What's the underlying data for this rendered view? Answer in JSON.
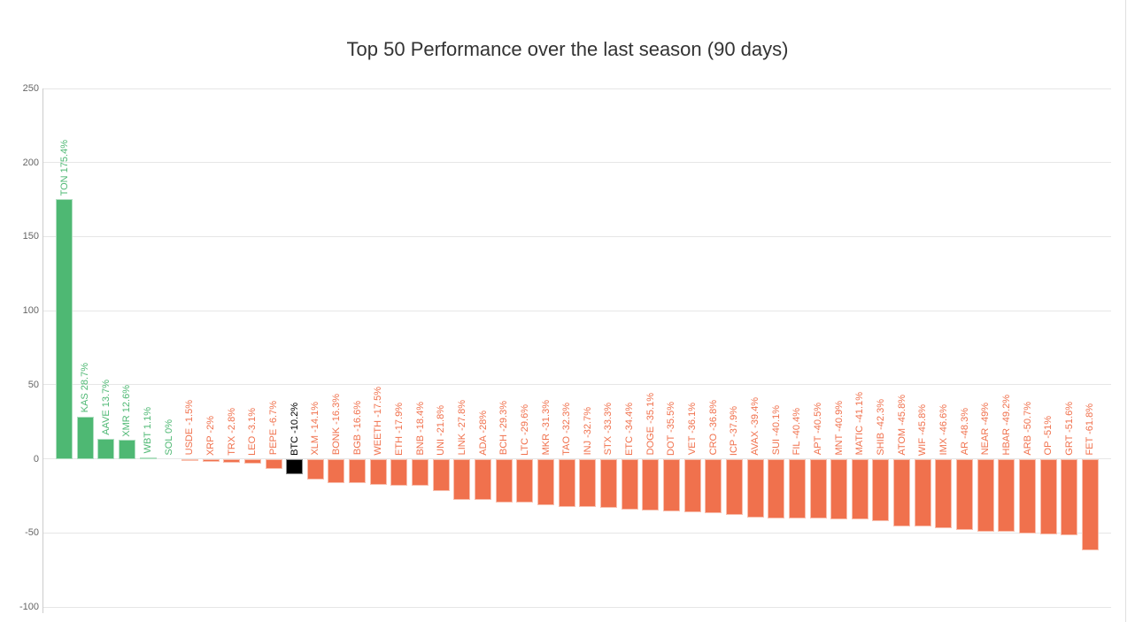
{
  "colors": {
    "positive": "#4eb873",
    "negative": "#f0714d",
    "highlight": "#000000",
    "grid": "#e6e6e6",
    "axis": "#cccccc",
    "tick_label": "#666666",
    "title": "#333333",
    "right_border": "#e0e0e0",
    "background": "#ffffff"
  },
  "chart_data": {
    "type": "bar",
    "title": "Top 50 Performance over the last season (90 days)",
    "xlabel": "",
    "ylabel": "",
    "ylim": [
      -100,
      250
    ],
    "yticks": [
      250,
      200,
      150,
      100,
      50,
      0,
      -50,
      -100
    ],
    "grid": true,
    "legend": false,
    "bar_label_format": "SYMBOL VALUE%",
    "points": [
      {
        "symbol": "TON",
        "value": 175.4,
        "label": "TON 175.4%",
        "role": "positive"
      },
      {
        "symbol": "KAS",
        "value": 28.7,
        "label": "KAS 28.7%",
        "role": "positive"
      },
      {
        "symbol": "AAVE",
        "value": 13.7,
        "label": "AAVE 13.7%",
        "role": "positive"
      },
      {
        "symbol": "XMR",
        "value": 12.6,
        "label": "XMR 12.6%",
        "role": "positive"
      },
      {
        "symbol": "WBT",
        "value": 1.1,
        "label": "WBT 1.1%",
        "role": "positive"
      },
      {
        "symbol": "SOL",
        "value": 0,
        "label": "SOL 0%",
        "role": "positive"
      },
      {
        "symbol": "USDE",
        "value": -1.5,
        "label": "USDE -1.5%",
        "role": "negative"
      },
      {
        "symbol": "XRP",
        "value": -2,
        "label": "XRP -2%",
        "role": "negative"
      },
      {
        "symbol": "TRX",
        "value": -2.8,
        "label": "TRX -2.8%",
        "role": "negative"
      },
      {
        "symbol": "LEO",
        "value": -3.1,
        "label": "LEO -3.1%",
        "role": "negative"
      },
      {
        "symbol": "PEPE",
        "value": -6.7,
        "label": "PEPE -6.7%",
        "role": "negative"
      },
      {
        "symbol": "BTC",
        "value": -10.2,
        "label": "BTC -10.2%",
        "role": "highlight"
      },
      {
        "symbol": "XLM",
        "value": -14.1,
        "label": "XLM -14.1%",
        "role": "negative"
      },
      {
        "symbol": "BONK",
        "value": -16.3,
        "label": "BONK -16.3%",
        "role": "negative"
      },
      {
        "symbol": "BGB",
        "value": -16.6,
        "label": "BGB -16.6%",
        "role": "negative"
      },
      {
        "symbol": "WEETH",
        "value": -17.5,
        "label": "WEETH -17.5%",
        "role": "negative"
      },
      {
        "symbol": "ETH",
        "value": -17.9,
        "label": "ETH -17.9%",
        "role": "negative"
      },
      {
        "symbol": "BNB",
        "value": -18.4,
        "label": "BNB -18.4%",
        "role": "negative"
      },
      {
        "symbol": "UNI",
        "value": -21.8,
        "label": "UNI -21.8%",
        "role": "negative"
      },
      {
        "symbol": "LINK",
        "value": -27.8,
        "label": "LINK -27.8%",
        "role": "negative"
      },
      {
        "symbol": "ADA",
        "value": -28,
        "label": "ADA -28%",
        "role": "negative"
      },
      {
        "symbol": "BCH",
        "value": -29.3,
        "label": "BCH -29.3%",
        "role": "negative"
      },
      {
        "symbol": "LTC",
        "value": -29.6,
        "label": "LTC -29.6%",
        "role": "negative"
      },
      {
        "symbol": "MKR",
        "value": -31.3,
        "label": "MKR -31.3%",
        "role": "negative"
      },
      {
        "symbol": "TAO",
        "value": -32.3,
        "label": "TAO -32.3%",
        "role": "negative"
      },
      {
        "symbol": "INJ",
        "value": -32.7,
        "label": "INJ -32.7%",
        "role": "negative"
      },
      {
        "symbol": "STX",
        "value": -33.3,
        "label": "STX -33.3%",
        "role": "negative"
      },
      {
        "symbol": "ETC",
        "value": -34.4,
        "label": "ETC -34.4%",
        "role": "negative"
      },
      {
        "symbol": "DOGE",
        "value": -35.1,
        "label": "DOGE -35.1%",
        "role": "negative"
      },
      {
        "symbol": "DOT",
        "value": -35.5,
        "label": "DOT -35.5%",
        "role": "negative"
      },
      {
        "symbol": "VET",
        "value": -36.1,
        "label": "VET -36.1%",
        "role": "negative"
      },
      {
        "symbol": "CRO",
        "value": -36.8,
        "label": "CRO -36.8%",
        "role": "negative"
      },
      {
        "symbol": "ICP",
        "value": -37.9,
        "label": "ICP -37.9%",
        "role": "negative"
      },
      {
        "symbol": "AVAX",
        "value": -39.4,
        "label": "AVAX -39.4%",
        "role": "negative"
      },
      {
        "symbol": "SUI",
        "value": -40.1,
        "label": "SUI -40.1%",
        "role": "negative"
      },
      {
        "symbol": "FIL",
        "value": -40.4,
        "label": "FIL -40.4%",
        "role": "negative"
      },
      {
        "symbol": "APT",
        "value": -40.5,
        "label": "APT -40.5%",
        "role": "negative"
      },
      {
        "symbol": "MNT",
        "value": -40.9,
        "label": "MNT -40.9%",
        "role": "negative"
      },
      {
        "symbol": "MATIC",
        "value": -41.1,
        "label": "MATIC -41.1%",
        "role": "negative"
      },
      {
        "symbol": "SHIB",
        "value": -42.3,
        "label": "SHIB -42.3%",
        "role": "negative"
      },
      {
        "symbol": "ATOM",
        "value": -45.8,
        "label": "ATOM -45.8%",
        "role": "negative"
      },
      {
        "symbol": "WIF",
        "value": -45.8,
        "label": "WIF -45.8%",
        "role": "negative"
      },
      {
        "symbol": "IMX",
        "value": -46.6,
        "label": "IMX -46.6%",
        "role": "negative"
      },
      {
        "symbol": "AR",
        "value": -48.3,
        "label": "AR -48.3%",
        "role": "negative"
      },
      {
        "symbol": "NEAR",
        "value": -49,
        "label": "NEAR -49%",
        "role": "negative"
      },
      {
        "symbol": "HBAR",
        "value": -49.2,
        "label": "HBAR -49.2%",
        "role": "negative"
      },
      {
        "symbol": "ARB",
        "value": -50.7,
        "label": "ARB -50.7%",
        "role": "negative"
      },
      {
        "symbol": "OP",
        "value": -51,
        "label": "OP -51%",
        "role": "negative"
      },
      {
        "symbol": "GRT",
        "value": -51.6,
        "label": "GRT -51.6%",
        "role": "negative"
      },
      {
        "symbol": "FET",
        "value": -61.8,
        "label": "FET -61.8%",
        "role": "negative"
      }
    ]
  }
}
